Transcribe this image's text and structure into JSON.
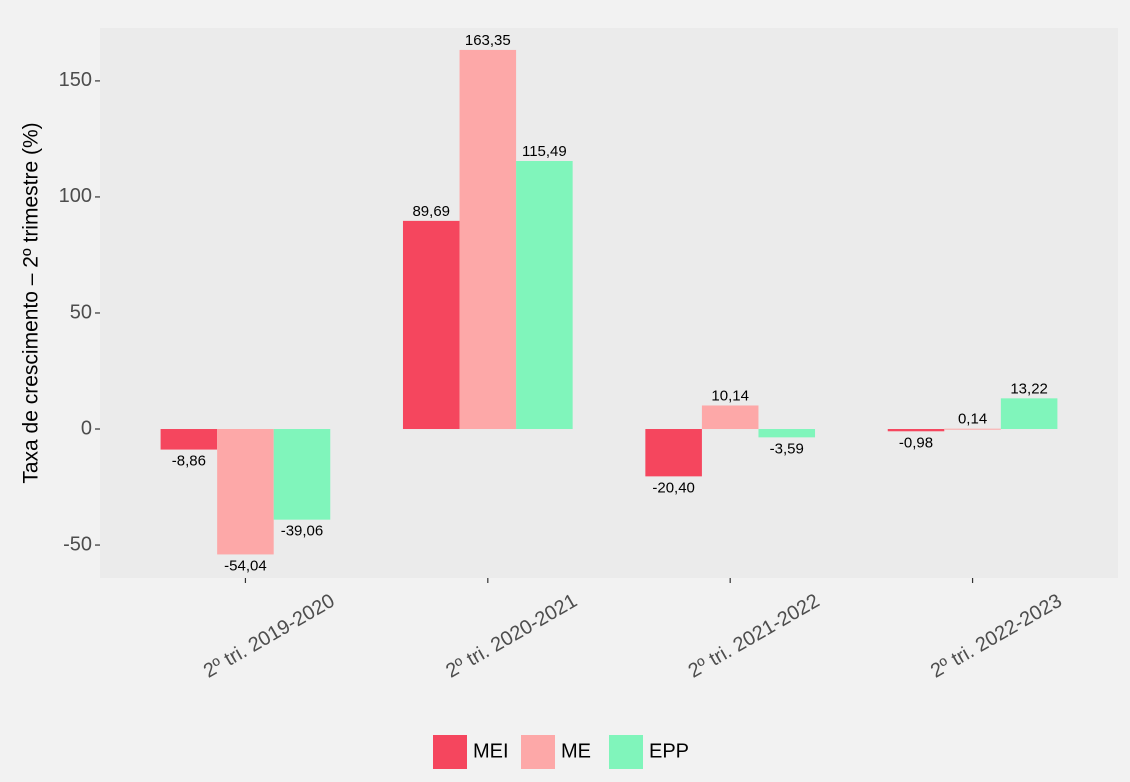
{
  "chart_data": {
    "type": "bar",
    "y_label": "Taxa de crescimento – 2º trimestre (%)",
    "categories": [
      "2º tri. 2019-2020",
      "2º tri. 2020-2021",
      "2º tri. 2021-2022",
      "2º tri. 2022-2023"
    ],
    "series": [
      {
        "name": "MEI",
        "color": "#f5465e",
        "values": [
          -8.86,
          89.69,
          -20.4,
          -0.98
        ],
        "value_labels": [
          "-8,86",
          "89,69",
          "-20,40",
          "-0,98"
        ]
      },
      {
        "name": "ME",
        "color": "#fda8a8",
        "values": [
          -54.04,
          163.35,
          10.14,
          0.14
        ],
        "value_labels": [
          "-54,04",
          "163,35",
          "10,14",
          "0,14"
        ]
      },
      {
        "name": "EPP",
        "color": "#80f5bb",
        "values": [
          -39.06,
          115.49,
          -3.59,
          13.22
        ],
        "value_labels": [
          "-39,06",
          "115,49",
          "-3,59",
          "13,22"
        ]
      }
    ],
    "ylim": [
      -64.2,
      172.8
    ],
    "yticks": [
      -50,
      0,
      50,
      100,
      150
    ],
    "grid": false,
    "legend": "bottom"
  }
}
